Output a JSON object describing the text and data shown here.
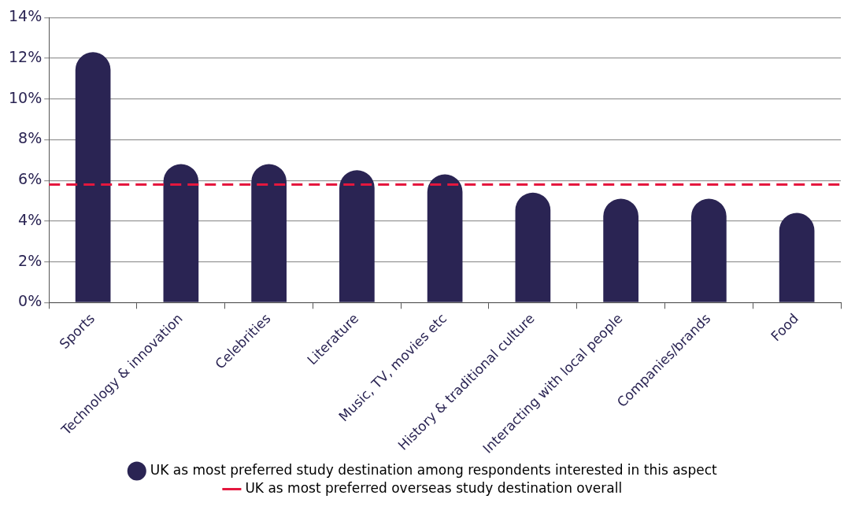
{
  "chart_data": {
    "type": "bar",
    "categories": [
      "Sports",
      "Technology & innovation",
      "Celebrities",
      "Literature",
      "Music, TV, movies etc",
      "History & traditional culture",
      "Interacting with local people",
      "Companies/brands",
      "Food"
    ],
    "series": [
      {
        "name": "UK as most preferred study destination among respondents interested in this aspect",
        "color": "#2a2453",
        "values": [
          12.3,
          6.8,
          6.8,
          6.5,
          6.3,
          5.4,
          5.1,
          5.1,
          4.4
        ]
      }
    ],
    "ylim": [
      0,
      14
    ],
    "yticks": [
      {
        "value": 0,
        "label": "0%"
      },
      {
        "value": 2,
        "label": "2%"
      },
      {
        "value": 4,
        "label": "4%"
      },
      {
        "value": 6,
        "label": "6%"
      },
      {
        "value": 8,
        "label": "8%"
      },
      {
        "value": 10,
        "label": "10%"
      },
      {
        "value": 12,
        "label": "12%"
      },
      {
        "value": 14,
        "label": "14%"
      }
    ],
    "ref_lines": [
      {
        "axis": "y",
        "value": 5.8,
        "label": "UK as most preferred overseas study destination overall",
        "color": "#e4173e",
        "line_style": "dashed"
      }
    ],
    "grid": "y",
    "legend": "bottom"
  }
}
